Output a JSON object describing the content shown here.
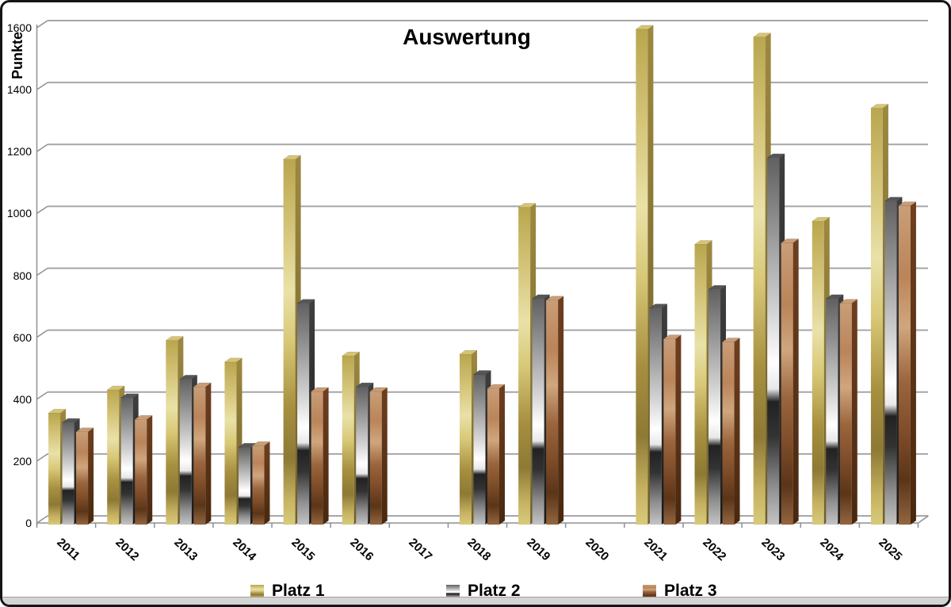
{
  "chart_data": {
    "type": "bar",
    "style": "3d-column",
    "title": "Auswertung",
    "ylabel": "Punkte",
    "xlabel": "",
    "ylim": [
      0,
      1600
    ],
    "ytick_step": 200,
    "yticks": [
      0,
      200,
      400,
      600,
      800,
      1000,
      1200,
      1400,
      1600
    ],
    "grid": true,
    "legend_position": "bottom",
    "categories": [
      "2011",
      "2012",
      "2013",
      "2014",
      "2015",
      "2016",
      "2017",
      "2018",
      "2019",
      "2020",
      "2021",
      "2022",
      "2023",
      "2024",
      "2025"
    ],
    "series": [
      {
        "name": "Platz 1",
        "color": "#c9b45c",
        "color_top": "#d5c573",
        "gradient_front": [
          [
            0,
            "#b9a64e"
          ],
          [
            0.18,
            "#d3c377"
          ],
          [
            0.36,
            "#e9e1a8"
          ],
          [
            0.5,
            "#d8c877"
          ],
          [
            0.68,
            "#a68f3f"
          ],
          [
            0.82,
            "#8e7935"
          ],
          [
            0.93,
            "#c6b261"
          ],
          [
            1,
            "#d8ca7c"
          ]
        ],
        "gradient_side": [
          [
            0,
            "#9c8840"
          ],
          [
            1,
            "#6f5e28"
          ]
        ],
        "values": [
          360,
          435,
          595,
          525,
          1180,
          545,
          0,
          550,
          1025,
          0,
          1600,
          905,
          1575,
          980,
          1345
        ]
      },
      {
        "name": "Platz 2",
        "color": "#9d9d9d",
        "color_top": "#565656",
        "gradient_front": [
          [
            0,
            "#606060"
          ],
          [
            0.17,
            "#8d8d8d"
          ],
          [
            0.42,
            "#d3d3d3"
          ],
          [
            0.56,
            "#ffffff"
          ],
          [
            0.63,
            "#e8e8e8"
          ],
          [
            0.665,
            "#222222"
          ],
          [
            0.76,
            "#333333"
          ],
          [
            0.9,
            "#909090"
          ],
          [
            1,
            "#c4c4c4"
          ]
        ],
        "gradient_side": [
          [
            0,
            "#3f3f3f"
          ],
          [
            1,
            "#191919"
          ]
        ],
        "values": [
          330,
          410,
          470,
          250,
          715,
          445,
          0,
          485,
          730,
          0,
          700,
          760,
          1185,
          730,
          1045
        ]
      },
      {
        "name": "Platz 3",
        "color": "#9a6239",
        "color_top": "#cb9d76",
        "gradient_front": [
          [
            0,
            "#c99e78"
          ],
          [
            0.22,
            "#bb8459"
          ],
          [
            0.38,
            "#d0a67e"
          ],
          [
            0.55,
            "#9b653d"
          ],
          [
            0.72,
            "#7c4b28"
          ],
          [
            0.86,
            "#5b3518"
          ],
          [
            0.94,
            "#7a5130"
          ],
          [
            1,
            "#95653e"
          ]
        ],
        "gradient_side": [
          [
            0,
            "#6e3f1f"
          ],
          [
            1,
            "#48280f"
          ]
        ],
        "values": [
          300,
          340,
          445,
          255,
          430,
          430,
          0,
          440,
          725,
          0,
          600,
          590,
          910,
          715,
          1030
        ]
      }
    ],
    "gridline_color": "#a6a6a6",
    "axis_line_color": "#8f8f8f",
    "text_color": "#000000"
  }
}
